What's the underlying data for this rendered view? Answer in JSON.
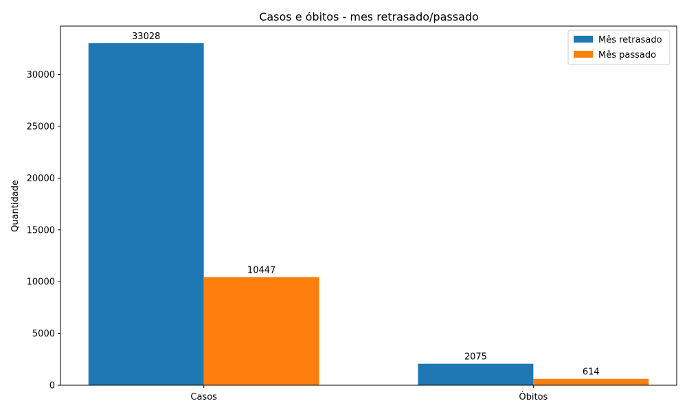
{
  "chart_data": {
    "type": "bar",
    "title": "Casos e óbitos - mes retrasado/passado",
    "xlabel": "",
    "ylabel": "Quantidade",
    "categories": [
      "Casos",
      "Óbitos"
    ],
    "series": [
      {
        "name": "Mês retrasado",
        "values": [
          33028,
          2075
        ],
        "color": "#1f77b4"
      },
      {
        "name": "Mês passado",
        "values": [
          10447,
          614
        ],
        "color": "#ff7f0e"
      }
    ],
    "ylim": [
      0,
      34679
    ],
    "yticks": [
      0,
      5000,
      10000,
      15000,
      20000,
      25000,
      30000
    ],
    "grid": false,
    "legend_position": "top-right",
    "show_value_labels": true
  }
}
